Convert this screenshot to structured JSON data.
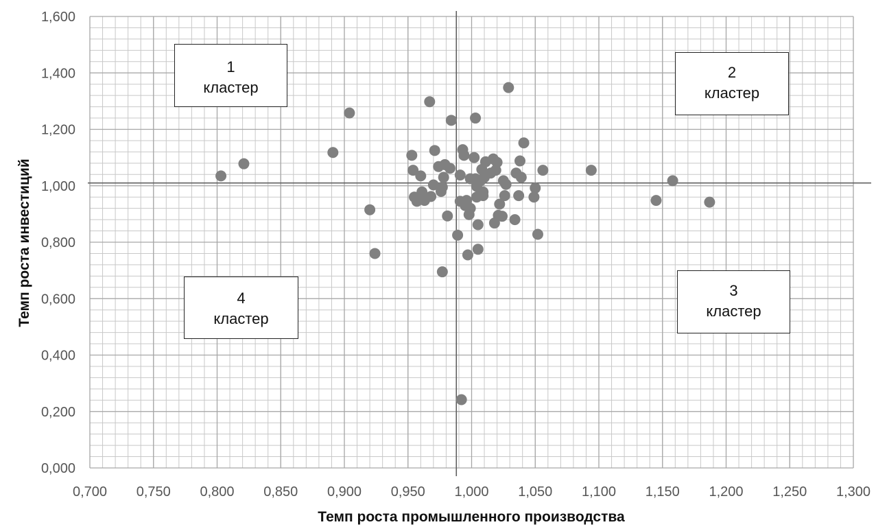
{
  "chart_data": {
    "type": "scatter",
    "xlabel": "Темп роста промышленного производства",
    "ylabel": "Темп роста инвестиций",
    "xlim": [
      0.7,
      1.3
    ],
    "ylim": [
      0.0,
      1.6
    ],
    "x_ticks": [
      "0,700",
      "0,750",
      "0,800",
      "0,850",
      "0,900",
      "0,950",
      "1,000",
      "1,050",
      "1,100",
      "1,150",
      "1,200",
      "1,250",
      "1,300"
    ],
    "y_ticks": [
      "0,000",
      "0,200",
      "0,400",
      "0,600",
      "0,800",
      "1,000",
      "1,200",
      "1,400",
      "1,600"
    ],
    "grid": true,
    "divider_lines": {
      "x": 0.988,
      "y": 1.01
    },
    "marker_color": "#808080",
    "clusters": [
      {
        "number": "1",
        "label": "кластер"
      },
      {
        "number": "2",
        "label": "кластер"
      },
      {
        "number": "3",
        "label": "кластер"
      },
      {
        "number": "4",
        "label": "кластер"
      }
    ],
    "points": [
      [
        0.803,
        1.035
      ],
      [
        0.821,
        1.078
      ],
      [
        0.891,
        1.118
      ],
      [
        0.904,
        1.258
      ],
      [
        0.92,
        0.915
      ],
      [
        0.924,
        0.76
      ],
      [
        0.953,
        1.108
      ],
      [
        0.954,
        1.055
      ],
      [
        0.955,
        0.96
      ],
      [
        0.957,
        0.945
      ],
      [
        0.96,
        1.035
      ],
      [
        0.961,
        0.978
      ],
      [
        0.963,
        0.948
      ],
      [
        0.967,
        1.298
      ],
      [
        0.968,
        0.962
      ],
      [
        0.97,
        1.003
      ],
      [
        0.971,
        1.125
      ],
      [
        0.974,
        1.068
      ],
      [
        0.976,
        0.98
      ],
      [
        0.977,
        0.995
      ],
      [
        0.977,
        0.695
      ],
      [
        0.978,
        1.03
      ],
      [
        0.979,
        1.075
      ],
      [
        0.981,
        0.893
      ],
      [
        0.983,
        1.062
      ],
      [
        0.984,
        1.232
      ],
      [
        0.989,
        0.825
      ],
      [
        0.991,
        1.038
      ],
      [
        0.991,
        0.945
      ],
      [
        0.992,
        0.242
      ],
      [
        0.993,
        1.128
      ],
      [
        0.994,
        1.108
      ],
      [
        0.995,
        0.93
      ],
      [
        0.996,
        0.948
      ],
      [
        0.997,
        0.755
      ],
      [
        0.998,
        0.898
      ],
      [
        0.999,
        1.025
      ],
      [
        0.999,
        0.92
      ],
      [
        1.002,
        1.1
      ],
      [
        1.003,
        1.24
      ],
      [
        1.003,
        1.025
      ],
      [
        1.004,
        0.998
      ],
      [
        1.004,
        0.96
      ],
      [
        1.005,
        0.862
      ],
      [
        1.005,
        0.775
      ],
      [
        1.007,
        1.018
      ],
      [
        1.008,
        1.058
      ],
      [
        1.009,
        0.978
      ],
      [
        1.009,
        0.965
      ],
      [
        1.01,
        1.03
      ],
      [
        1.011,
        1.085
      ],
      [
        1.015,
        1.045
      ],
      [
        1.017,
        1.095
      ],
      [
        1.018,
        0.868
      ],
      [
        1.019,
        1.055
      ],
      [
        1.02,
        1.083
      ],
      [
        1.021,
        0.895
      ],
      [
        1.022,
        0.935
      ],
      [
        1.024,
        0.892
      ],
      [
        1.025,
        1.018
      ],
      [
        1.026,
        0.965
      ],
      [
        1.027,
        1.005
      ],
      [
        1.029,
        1.348
      ],
      [
        1.034,
        0.88
      ],
      [
        1.035,
        1.045
      ],
      [
        1.037,
        0.965
      ],
      [
        1.038,
        1.088
      ],
      [
        1.039,
        1.03
      ],
      [
        1.041,
        1.152
      ],
      [
        1.049,
        0.96
      ],
      [
        1.05,
        0.992
      ],
      [
        1.052,
        0.828
      ],
      [
        1.056,
        1.055
      ],
      [
        1.094,
        1.055
      ],
      [
        1.145,
        0.948
      ],
      [
        1.158,
        1.018
      ],
      [
        1.187,
        0.942
      ]
    ]
  }
}
